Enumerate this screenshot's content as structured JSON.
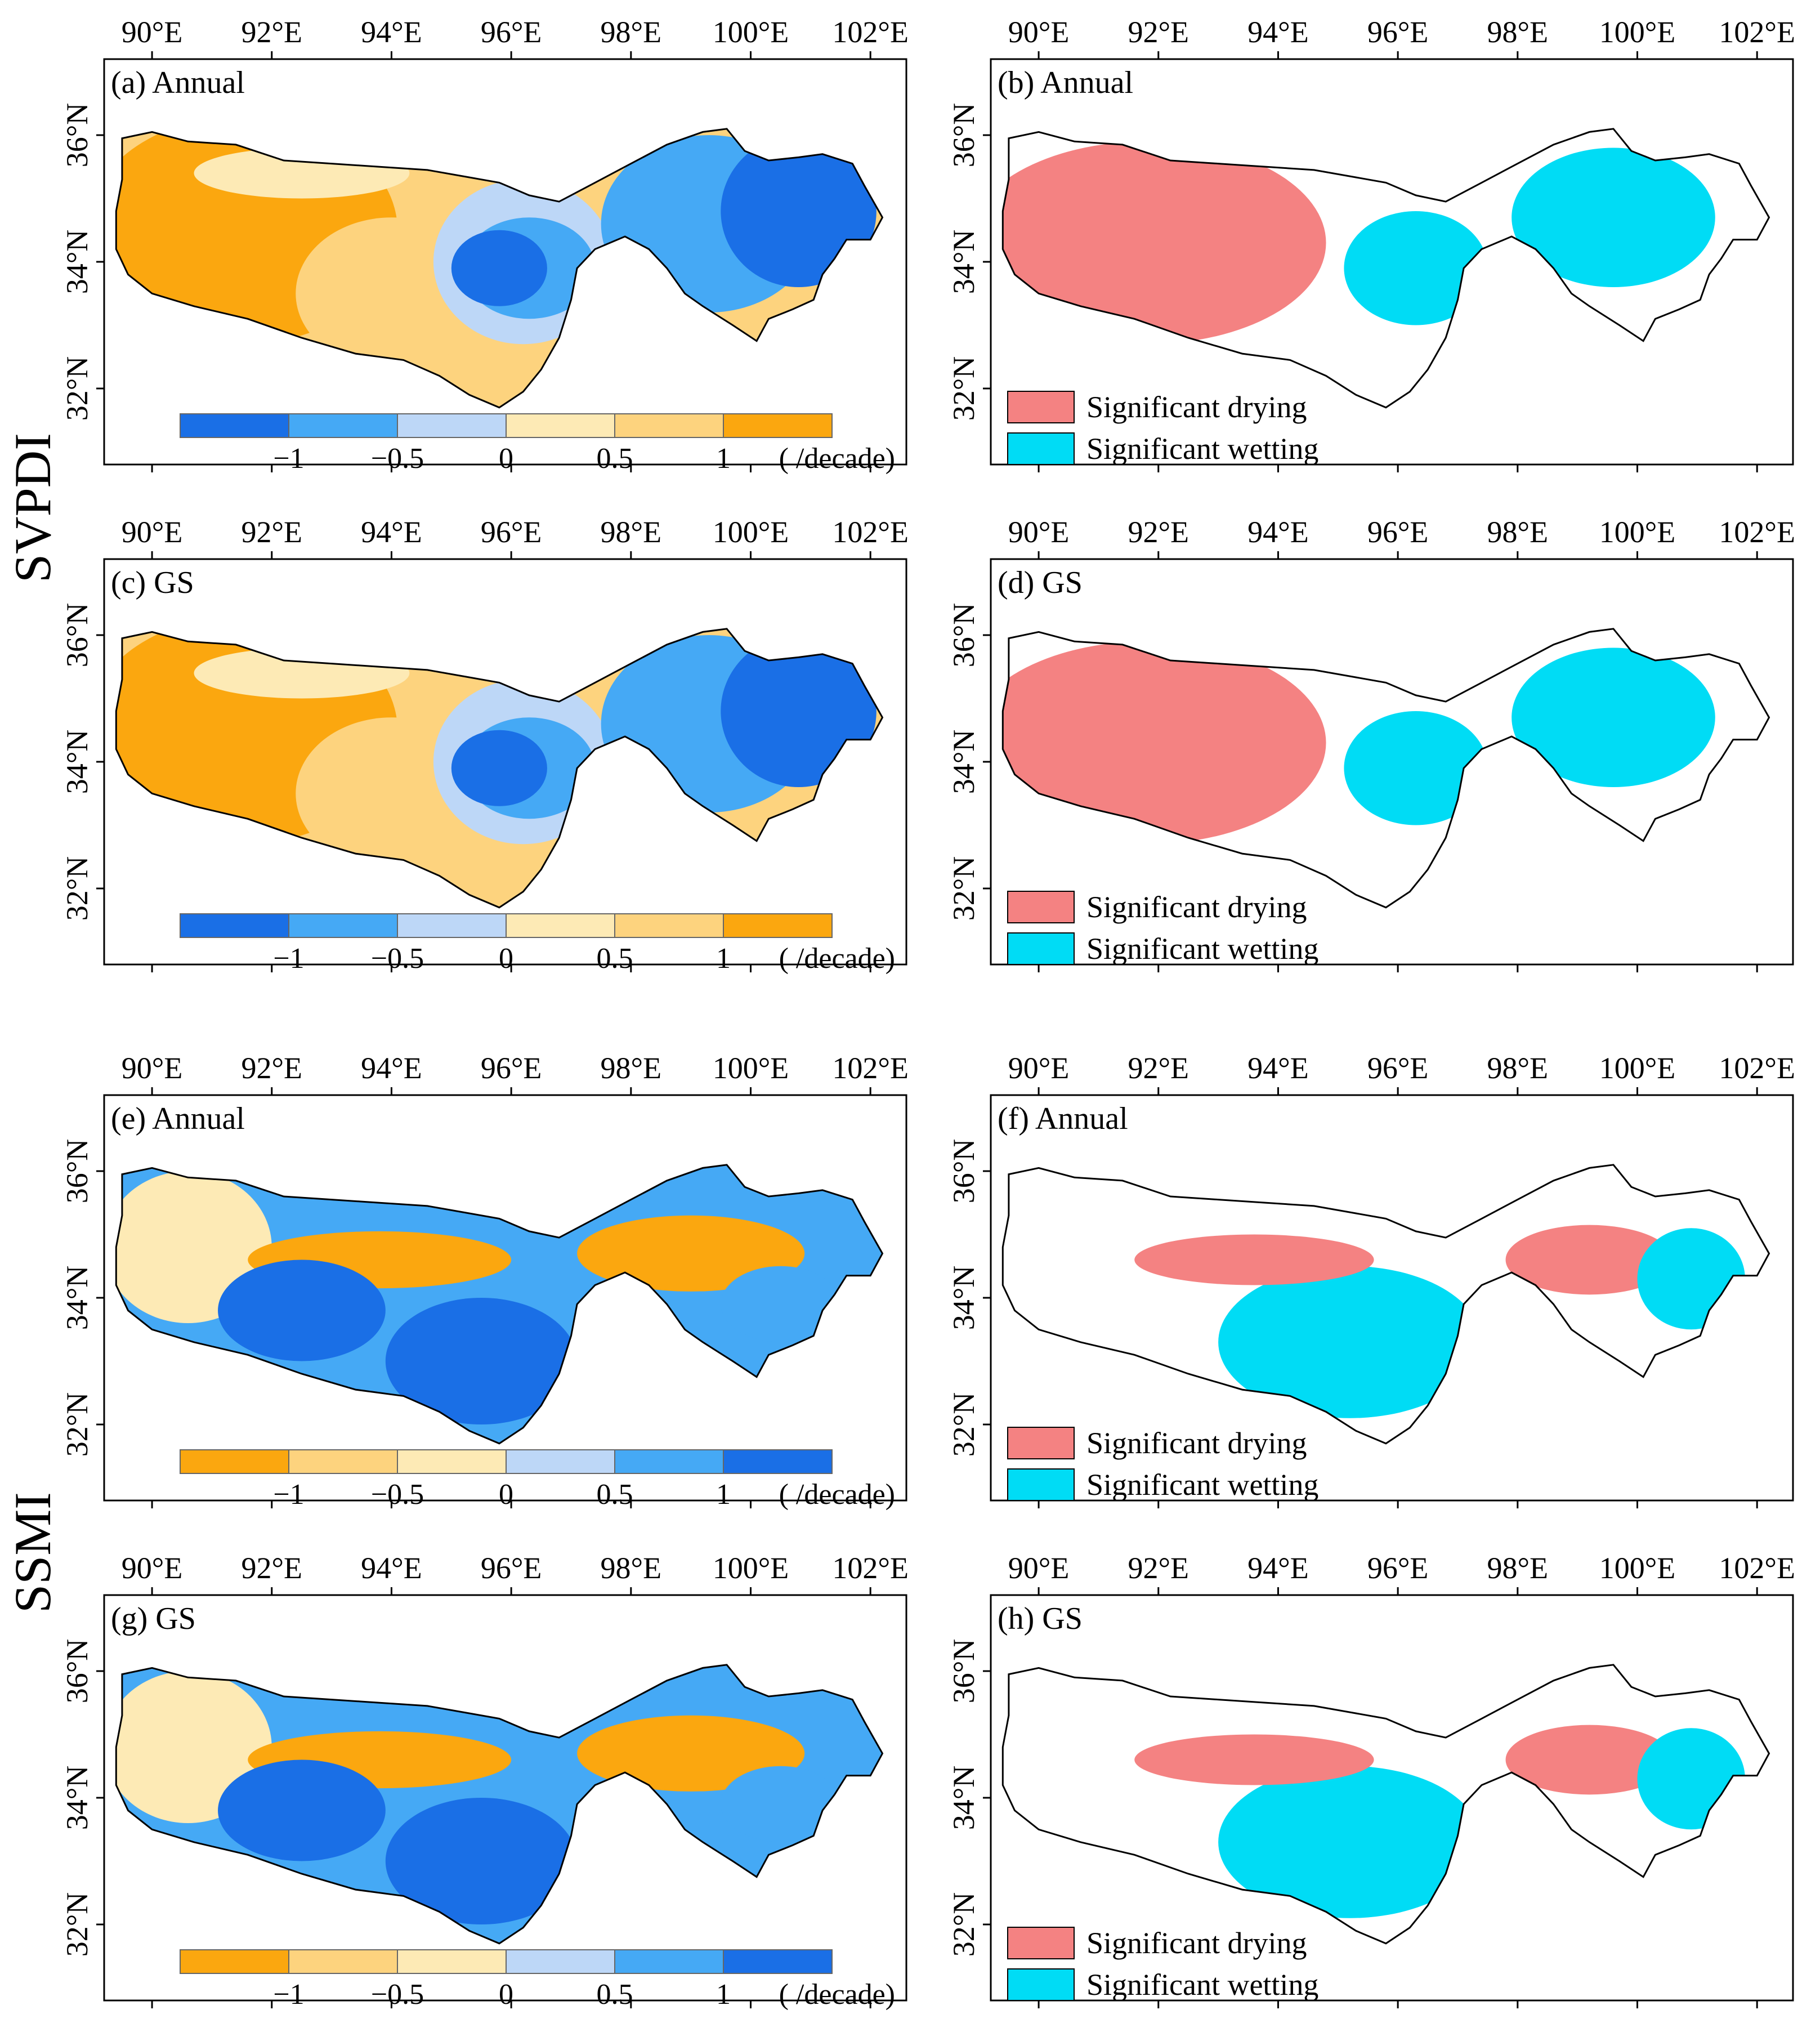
{
  "figure": {
    "row_groups": [
      {
        "label": "SVPDI",
        "panels": [
          "a",
          "b",
          "c",
          "d"
        ]
      },
      {
        "label": "SSMI",
        "panels": [
          "e",
          "f",
          "g",
          "h"
        ]
      }
    ],
    "lon_ticks": [
      "90°E",
      "92°E",
      "94°E",
      "96°E",
      "98°E",
      "100°E",
      "102°E"
    ],
    "lat_ticks": [
      "32°N",
      "34°N",
      "36°N"
    ],
    "colorbar": {
      "tick_labels": [
        "−1",
        "−0.5",
        "0",
        "0.5",
        "1"
      ],
      "unit_label": "( /decade)",
      "svpdi_colors": [
        "#1a6fe6",
        "#45a9f5",
        "#bdd7f7",
        "#fdeab5",
        "#fdd37e",
        "#fba70f"
      ],
      "ssmi_colors": [
        "#fba70f",
        "#fdd37e",
        "#fdeab5",
        "#bdd7f7",
        "#45a9f5",
        "#1a6fe6"
      ]
    },
    "legend": {
      "drying_label": "Significant drying",
      "wetting_label": "Significant wetting",
      "drying_color": "#f48282",
      "wetting_color": "#00dcf5"
    },
    "panels": [
      {
        "id": "a",
        "title": "(a) Annual",
        "type": "trend",
        "index": "SVPDI"
      },
      {
        "id": "b",
        "title": "(b) Annual",
        "type": "significance",
        "index": "SVPDI"
      },
      {
        "id": "c",
        "title": "(c) GS",
        "type": "trend",
        "index": "SVPDI"
      },
      {
        "id": "d",
        "title": "(d) GS",
        "type": "significance",
        "index": "SVPDI"
      },
      {
        "id": "e",
        "title": "(e) Annual",
        "type": "trend",
        "index": "SSMI"
      },
      {
        "id": "f",
        "title": "(f) Annual",
        "type": "significance",
        "index": "SSMI"
      },
      {
        "id": "g",
        "title": "(g) GS",
        "type": "trend",
        "index": "SSMI"
      },
      {
        "id": "h",
        "title": "(h) GS",
        "type": "significance",
        "index": "SSMI"
      }
    ]
  }
}
